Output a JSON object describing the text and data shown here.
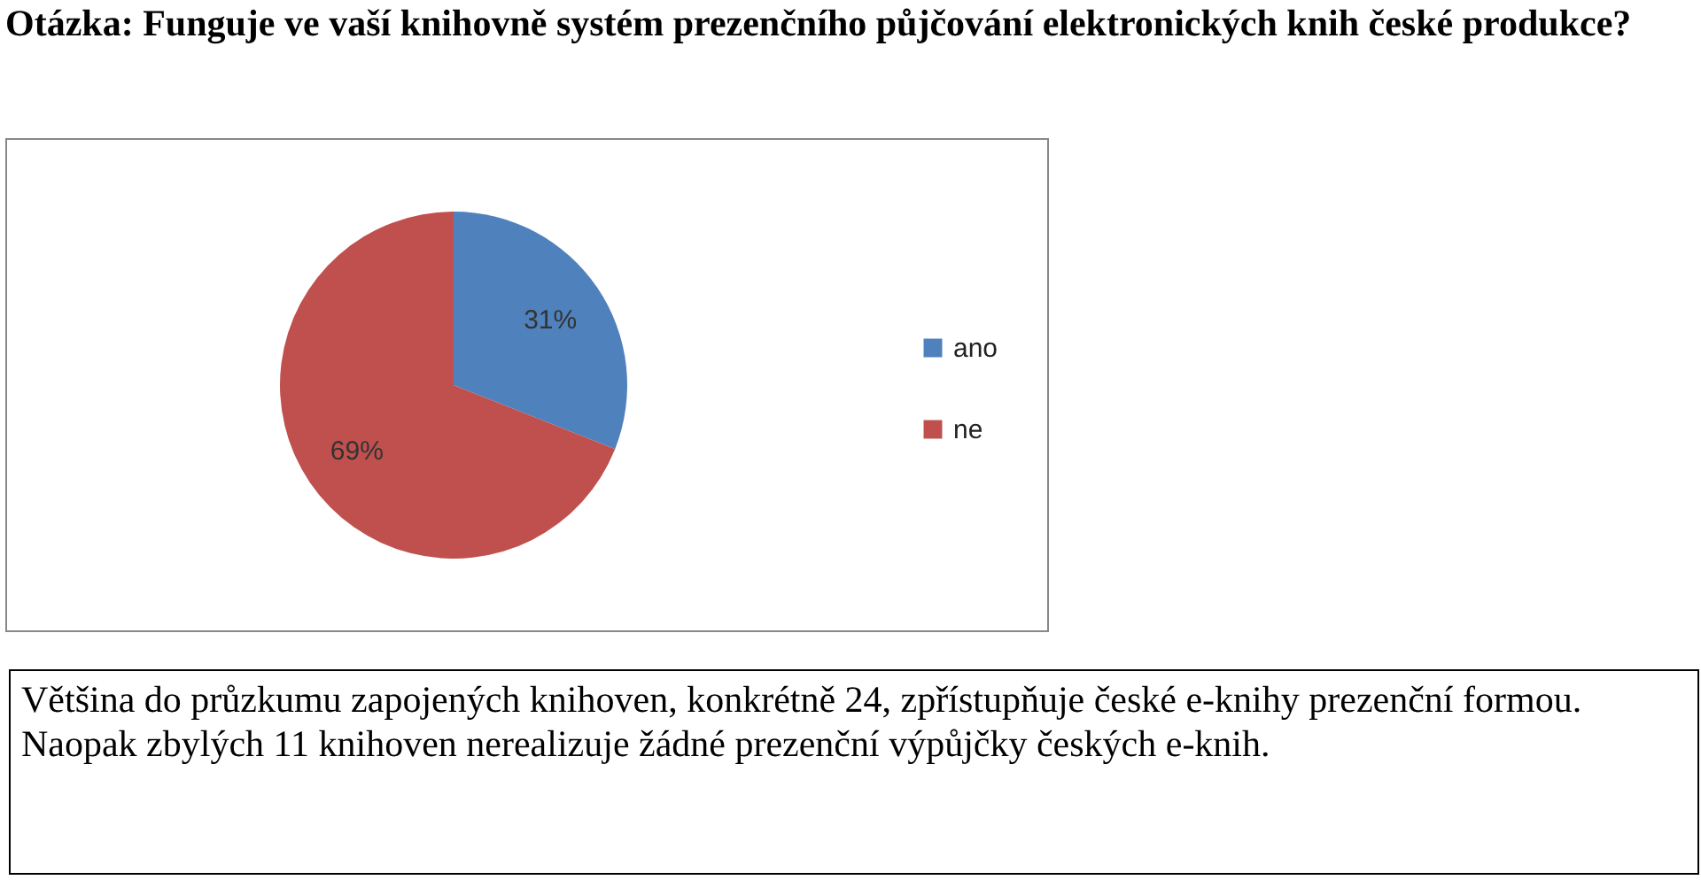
{
  "chart_data": {
    "type": "pie",
    "title": "Otázka: Funguje ve vaší knihovně systém prezenčního půjčování elektronických knih české produkce?",
    "categories": [
      "ano",
      "ne"
    ],
    "values": [
      31,
      69
    ],
    "colors": [
      "#4f81bd",
      "#c0504d"
    ],
    "value_labels": [
      "31%",
      "69%"
    ],
    "legend": "right",
    "annotations": [
      "Většina do průzkumu zapojených knihoven, konkrétně 24, zpřístupňuje české e-knihy prezenční formou. Naopak zbylých 11 knihoven nerealizuje žádné prezenční výpůjčky českých e-knih."
    ]
  }
}
